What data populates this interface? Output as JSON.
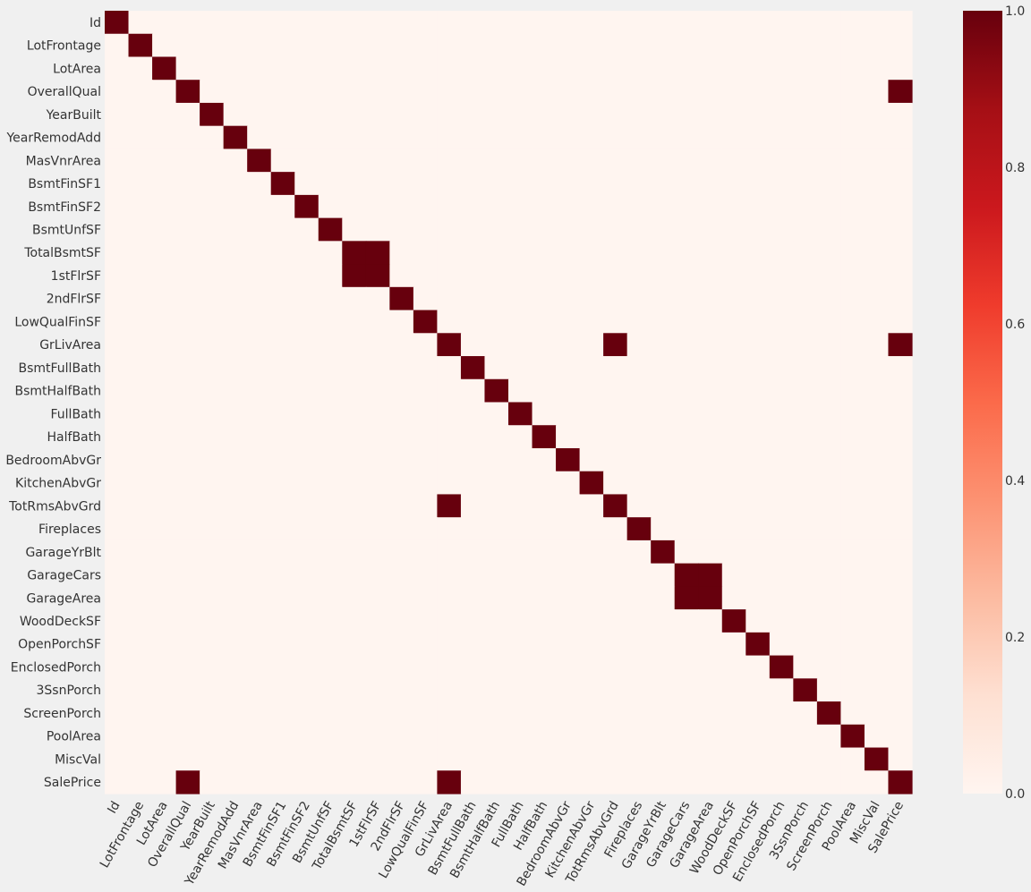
{
  "chart_data": {
    "type": "heatmap",
    "title": "",
    "xlabel": "",
    "ylabel": "",
    "variables": [
      "Id",
      "LotFrontage",
      "LotArea",
      "OverallQual",
      "YearBuilt",
      "YearRemodAdd",
      "MasVnrArea",
      "BsmtFinSF1",
      "BsmtFinSF2",
      "BsmtUnfSF",
      "TotalBsmtSF",
      "1stFlrSF",
      "2ndFlrSF",
      "LowQualFinSF",
      "GrLivArea",
      "BsmtFullBath",
      "BsmtHalfBath",
      "FullBath",
      "HalfBath",
      "BedroomAbvGr",
      "KitchenAbvGr",
      "TotRmsAbvGrd",
      "Fireplaces",
      "GarageYrBlt",
      "GarageCars",
      "GarageArea",
      "WoodDeckSF",
      "OpenPorchSF",
      "EnclosedPorch",
      "3SsnPorch",
      "ScreenPorch",
      "PoolArea",
      "MiscVal",
      "SalePrice"
    ],
    "default_value": 0.0,
    "ones": [
      [
        "OverallQual",
        "SalePrice"
      ],
      [
        "TotalBsmtSF",
        "1stFlrSF"
      ],
      [
        "GrLivArea",
        "TotRmsAbvGrd"
      ],
      [
        "GrLivArea",
        "SalePrice"
      ],
      [
        "GarageCars",
        "GarageArea"
      ]
    ],
    "colorbar": {
      "ticks": [
        "0.0",
        "0.2",
        "0.4",
        "0.6",
        "0.8",
        "1.0"
      ],
      "range": [
        0.0,
        1.0
      ]
    },
    "colormap": "Reds",
    "colors": {
      "low": "#fff5f0",
      "high": "#67000d",
      "background": "#f0f0f0"
    }
  }
}
